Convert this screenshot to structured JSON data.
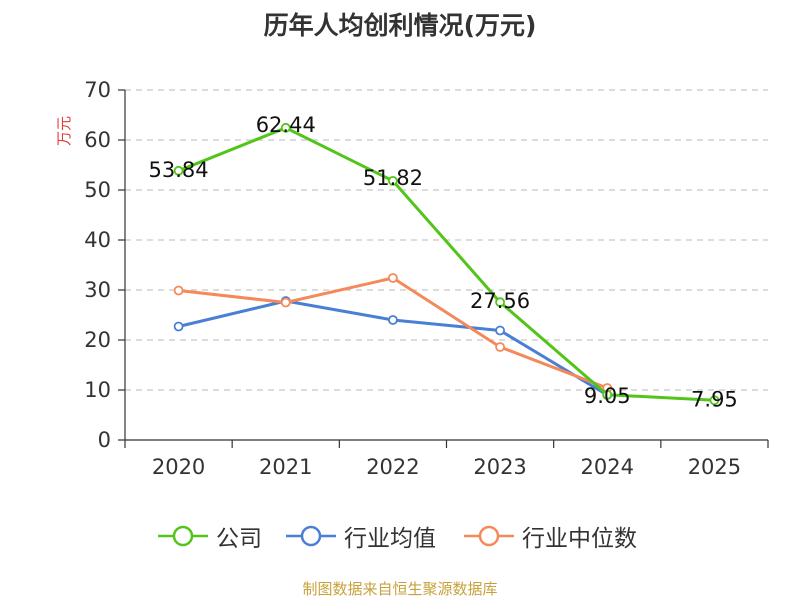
{
  "chart_data": {
    "type": "line",
    "title": "历年人均创利情况(万元)",
    "ylabel": "万元",
    "xlabel": "",
    "categories": [
      "2020",
      "2021",
      "2022",
      "2023",
      "2024",
      "2025"
    ],
    "ylim": [
      0,
      70
    ],
    "yticks": [
      0,
      10,
      20,
      30,
      40,
      50,
      60,
      70
    ],
    "grid": true,
    "legend_position": "bottom",
    "series": [
      {
        "name": "公司",
        "color": "#52c41a",
        "values": [
          53.84,
          62.44,
          51.82,
          27.56,
          9.05,
          7.95
        ],
        "labels": [
          "53.84",
          "62.44",
          "51.82",
          "27.56",
          "9.05",
          "7.95"
        ]
      },
      {
        "name": "行业均值",
        "color": "#4a7fd6",
        "values": [
          22.7,
          27.8,
          24.0,
          21.9,
          9.0,
          null
        ]
      },
      {
        "name": "行业中位数",
        "color": "#f5895a",
        "values": [
          29.9,
          27.5,
          32.4,
          18.6,
          10.4,
          null
        ]
      }
    ]
  },
  "source": "制图数据来自恒生聚源数据库"
}
